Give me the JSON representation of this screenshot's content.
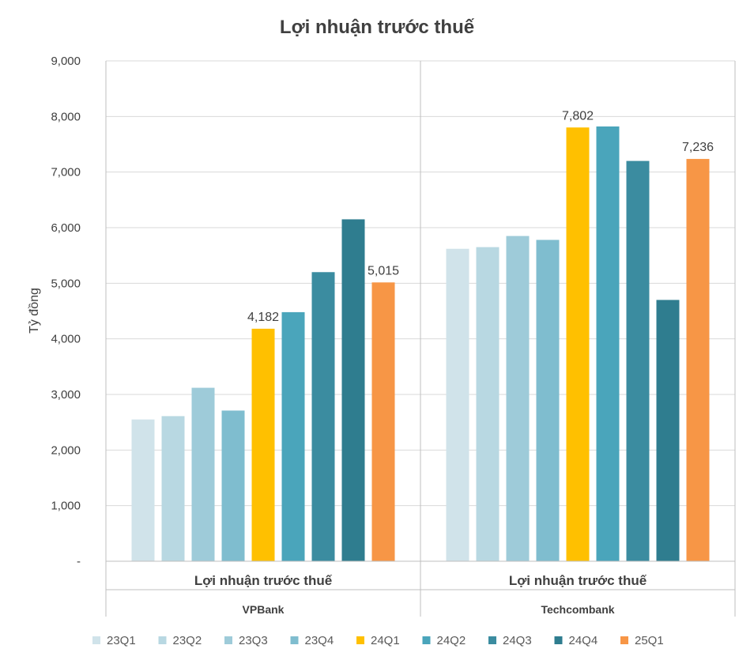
{
  "chart_data": {
    "type": "bar",
    "title": "Lợi nhuận trước thuế",
    "ylabel": "Tỷ đồng",
    "ylim": [
      0,
      9000
    ],
    "y_ticks": [
      "-",
      "1,000",
      "2,000",
      "3,000",
      "4,000",
      "5,000",
      "6,000",
      "7,000",
      "8,000",
      "9,000"
    ],
    "grid": true,
    "legend_position": "bottom",
    "groups": [
      {
        "metric": "Lợi nhuận trước thuế",
        "bank": "VPBank"
      },
      {
        "metric": "Lợi nhuận trước thuế",
        "bank": "Techcombank"
      }
    ],
    "series": [
      {
        "name": "23Q1",
        "color": "#d0e3ea",
        "values": [
          2550,
          5620
        ]
      },
      {
        "name": "23Q2",
        "color": "#b8d8e2",
        "values": [
          2610,
          5650
        ]
      },
      {
        "name": "23Q3",
        "color": "#9ecbd9",
        "values": [
          3120,
          5850
        ]
      },
      {
        "name": "23Q4",
        "color": "#7fbdcf",
        "values": [
          2710,
          5780
        ]
      },
      {
        "name": "24Q1",
        "color": "#ffc000",
        "values": [
          4182,
          7802
        ],
        "labels": [
          "4,182",
          "7,802"
        ]
      },
      {
        "name": "24Q2",
        "color": "#4aa5bb",
        "values": [
          4480,
          7820
        ]
      },
      {
        "name": "24Q3",
        "color": "#3b8ca0",
        "values": [
          5200,
          7200
        ]
      },
      {
        "name": "24Q4",
        "color": "#2f7d8f",
        "values": [
          6150,
          4700
        ]
      },
      {
        "name": "25Q1",
        "color": "#f79646",
        "values": [
          5015,
          7236
        ],
        "labels": [
          "5,015",
          "7,236"
        ]
      }
    ]
  }
}
